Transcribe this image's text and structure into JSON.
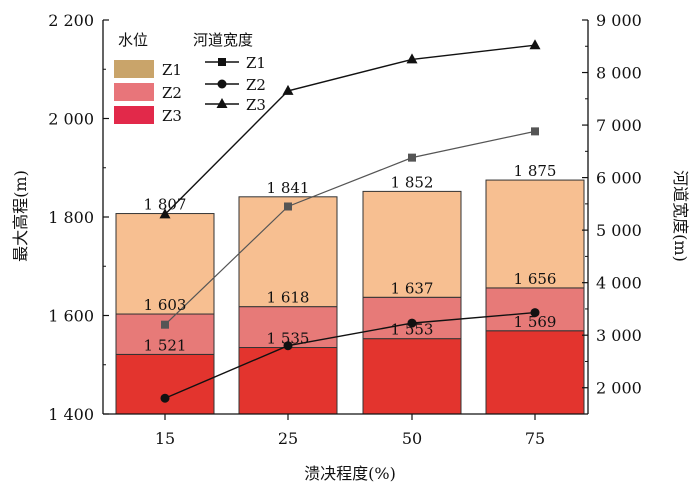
{
  "chart_data": {
    "type": "bar",
    "categories": [
      "15",
      "25",
      "50",
      "75"
    ],
    "xlabel": "溃决程度(%)",
    "ylabel": "最大高程(m)",
    "y2label": "河道宽度(m)",
    "ylim": [
      1400,
      2200
    ],
    "y2lim": [
      1500,
      9000
    ],
    "yticks": [
      1400,
      1600,
      1800,
      2000,
      2200
    ],
    "yticks_text": [
      "1 400",
      "1 600",
      "1 800",
      "2 000",
      "2 200"
    ],
    "y2ticks": [
      2000,
      3000,
      4000,
      5000,
      6000,
      7000,
      8000,
      9000
    ],
    "y2ticks_text": [
      "2 000",
      "3 000",
      "4 000",
      "5 000",
      "6 000",
      "7 000",
      "8 000",
      "9 000"
    ],
    "legend_water": {
      "title": "水位",
      "items": [
        {
          "name": "Z1",
          "color": "#c9a46a"
        },
        {
          "name": "Z2",
          "color": "#e8757a"
        },
        {
          "name": "Z3",
          "color": "#e2294a"
        }
      ]
    },
    "legend_width": {
      "title": "河道宽度",
      "items": [
        {
          "name": "Z1",
          "marker": "square"
        },
        {
          "name": "Z2",
          "marker": "circle"
        },
        {
          "name": "Z3",
          "marker": "triangle"
        }
      ]
    },
    "bars": {
      "top": [
        1807,
        1841,
        1852,
        1875
      ],
      "middle": [
        1603,
        1618,
        1637,
        1656
      ],
      "bottom": [
        1521,
        1535,
        1553,
        1569
      ],
      "top_labels": [
        "1 807",
        "1 841",
        "1 852",
        "1 875"
      ],
      "middle_labels": [
        "1 603",
        "1 618",
        "1 637",
        "1 656"
      ],
      "bottom_labels": [
        "1 521",
        "1 535",
        "1 553",
        "1 569"
      ],
      "colors": {
        "top": "#f7bf91",
        "middle": "#e77a78",
        "bottom": "#e3342e"
      }
    },
    "lines": [
      {
        "name": "Z1",
        "marker": "square",
        "color": "#555555",
        "values": [
          3200,
          5450,
          6380,
          6880
        ]
      },
      {
        "name": "Z2",
        "marker": "circle",
        "color": "#111111",
        "values": [
          1800,
          2800,
          3230,
          3430
        ]
      },
      {
        "name": "Z3",
        "marker": "triangle",
        "color": "#111111",
        "values": [
          5300,
          7650,
          8250,
          8520
        ]
      }
    ]
  }
}
